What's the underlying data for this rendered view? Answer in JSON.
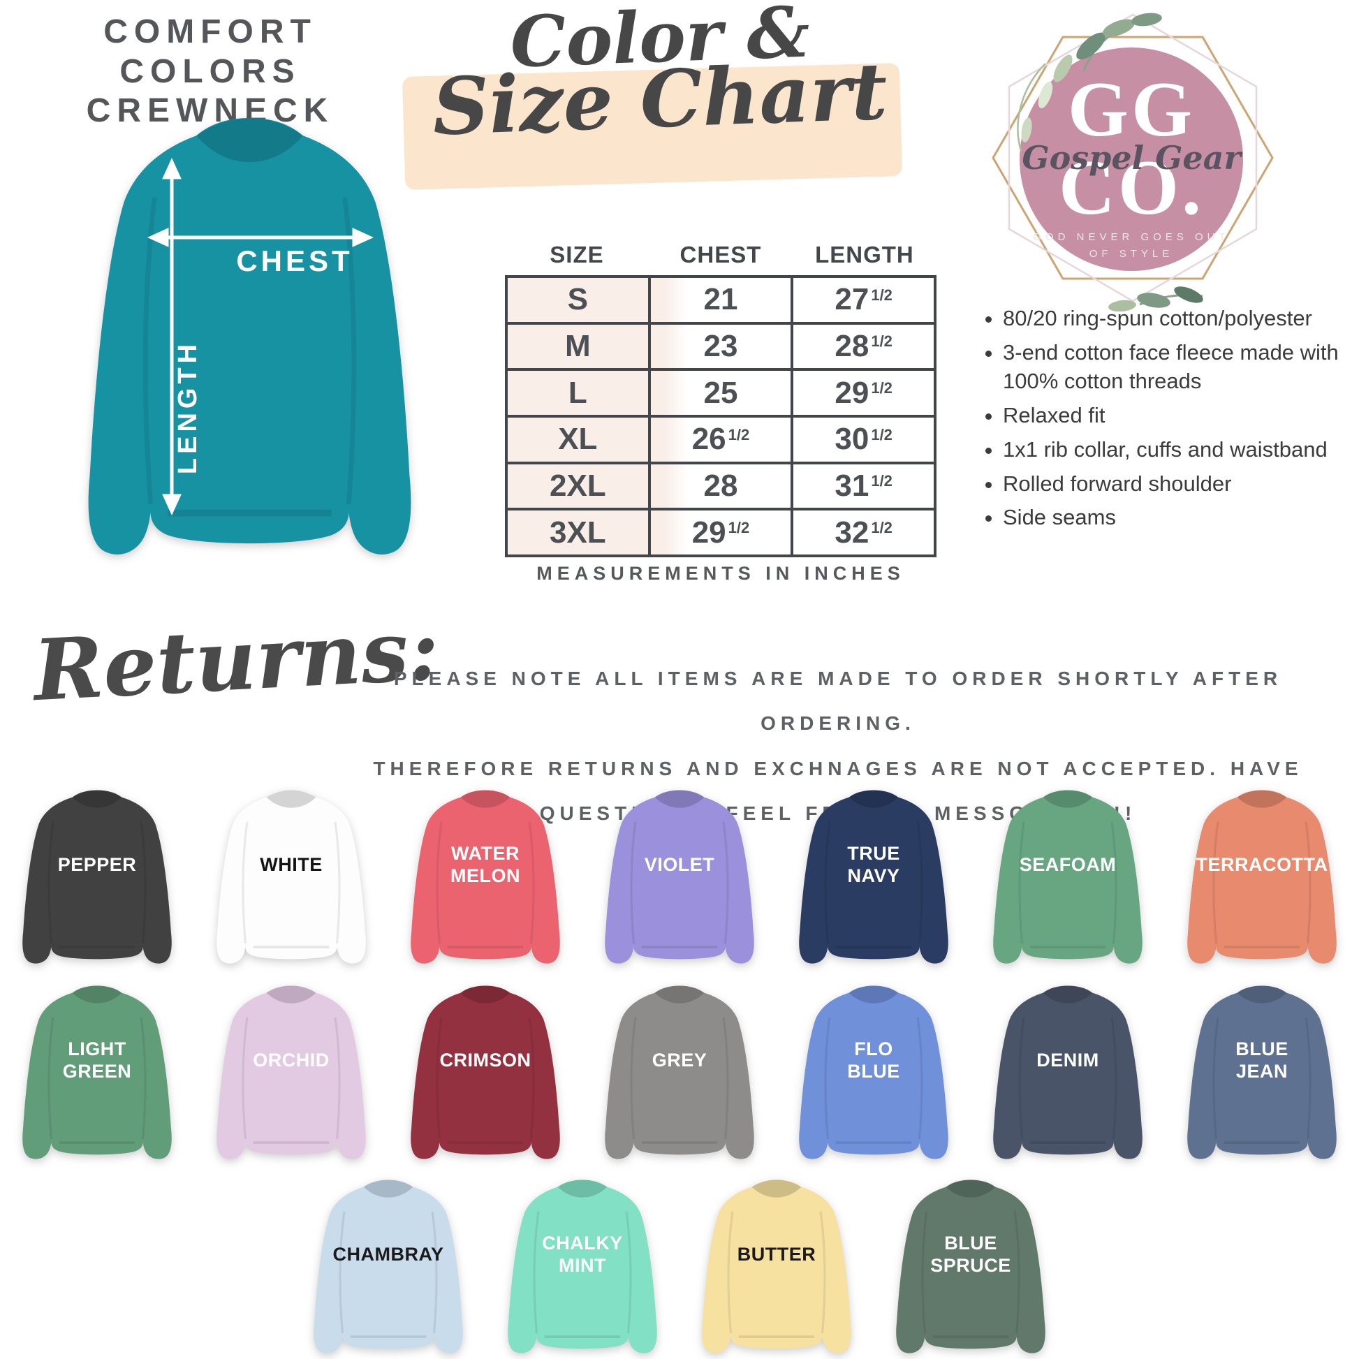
{
  "title": {
    "line1": "COMFORT COLORS",
    "line2": "CREWNECK"
  },
  "diagram": {
    "chest_label": "CHEST",
    "length_label": "LENGTH",
    "shirt_color": "#1692a3"
  },
  "heading": {
    "line1": "Color &",
    "line2": "Size Chart",
    "brush_color": "#fbe5cd"
  },
  "size_chart": {
    "columns": [
      "SIZE",
      "CHEST",
      "LENGTH"
    ],
    "rows": [
      {
        "size": "S",
        "chest": "21",
        "chest_frac": "",
        "length": "27",
        "length_frac": "1/2"
      },
      {
        "size": "M",
        "chest": "23",
        "chest_frac": "",
        "length": "28",
        "length_frac": "1/2"
      },
      {
        "size": "L",
        "chest": "25",
        "chest_frac": "",
        "length": "29",
        "length_frac": "1/2"
      },
      {
        "size": "XL",
        "chest": "26",
        "chest_frac": "1/2",
        "length": "30",
        "length_frac": "1/2"
      },
      {
        "size": "2XL",
        "chest": "28",
        "chest_frac": "",
        "length": "31",
        "length_frac": "1/2"
      },
      {
        "size": "3XL",
        "chest": "29",
        "chest_frac": "1/2",
        "length": "32",
        "length_frac": "1/2"
      }
    ],
    "footnote": "MEASUREMENTS IN INCHES"
  },
  "logo": {
    "initials_top": "GG",
    "initials_bottom": "CO.",
    "script": "Gospel Gear",
    "tagline_line1": "GOD NEVER GOES OUT",
    "tagline_line2": "OF STYLE",
    "circle_color": "#c68fa3"
  },
  "features": [
    "80/20 ring-spun cotton/polyester",
    "3-end cotton face fleece made with 100% cotton threads",
    "Relaxed fit",
    "1x1 rib collar, cuffs and waistband",
    "Rolled forward shoulder",
    "Side seams"
  ],
  "returns": {
    "heading": "Returns:",
    "lines": [
      "PLEASE NOTE ALL ITEMS ARE MADE TO ORDER SHORTLY AFTER ORDERING.",
      "THEREFORE RETURNS AND EXCHNAGES ARE NOT ACCEPTED. HAVE",
      "QUESTIONS? FEEL FREE TO MESSGAE US!!"
    ]
  },
  "colors": {
    "rows": [
      [
        {
          "name": "PEPPER",
          "hex": "#414142",
          "text": "#ffffff"
        },
        {
          "name": "WHITE",
          "hex": "#fdfdfd",
          "text": "#131313"
        },
        {
          "name": "WATER\nMELON",
          "hex": "#ec6370",
          "text": "#ffffff"
        },
        {
          "name": "VIOLET",
          "hex": "#9a90db",
          "text": "#ffffff"
        },
        {
          "name": "TRUE\nNAVY",
          "hex": "#2a3c62",
          "text": "#ffffff"
        },
        {
          "name": "SEAFOAM",
          "hex": "#68a682",
          "text": "#ffffff"
        },
        {
          "name": "TERRACOTTA",
          "hex": "#e78a6e",
          "text": "#ffffff"
        }
      ],
      [
        {
          "name": "LIGHT\nGREEN",
          "hex": "#629d79",
          "text": "#ffffff"
        },
        {
          "name": "ORCHID",
          "hex": "#e3cae3",
          "text": "#ffffff"
        },
        {
          "name": "CRIMSON",
          "hex": "#943140",
          "text": "#ffffff"
        },
        {
          "name": "GREY",
          "hex": "#8e8c8b",
          "text": "#ffffff"
        },
        {
          "name": "FLO\nBLUE",
          "hex": "#7090da",
          "text": "#ffffff"
        },
        {
          "name": "DENIM",
          "hex": "#4a5468",
          "text": "#ffffff"
        },
        {
          "name": "BLUE\nJEAN",
          "hex": "#5f7191",
          "text": "#ffffff"
        }
      ],
      [
        {
          "name": "CHAMBRAY",
          "hex": "#c8dcec",
          "text": "#1a1a1a"
        },
        {
          "name": "CHALKY\nMINT",
          "hex": "#82e0c4",
          "text": "#ffffff"
        },
        {
          "name": "BUTTER",
          "hex": "#f6e1a0",
          "text": "#1a1a1a"
        },
        {
          "name": "BLUE\nSPRUCE",
          "hex": "#60796a",
          "text": "#ffffff"
        }
      ]
    ],
    "row_tops": [
      1122,
      1402,
      1680
    ]
  }
}
